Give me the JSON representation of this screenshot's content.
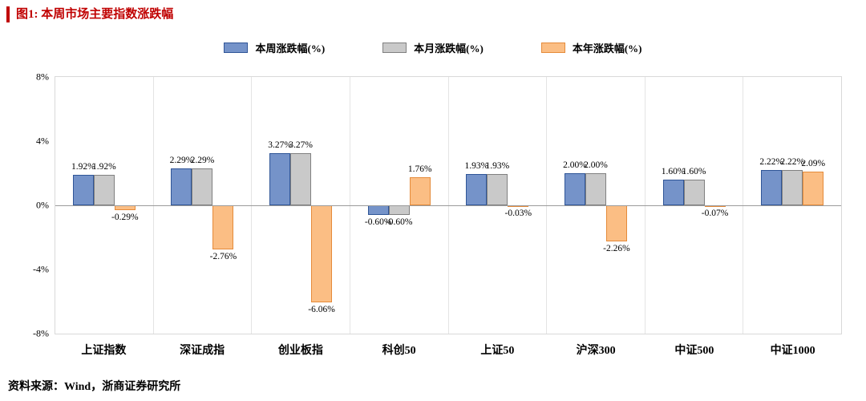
{
  "title": "图1:  本周市场主要指数涨跌幅",
  "source": "资料来源：Wind，浙商证券研究所",
  "colors": {
    "title_red": "#c00000",
    "plot_border": "#d9d9d9",
    "zero_line": "#9b9b9b"
  },
  "chart_data": {
    "type": "bar",
    "title": "本周市场主要指数涨跌幅",
    "categories": [
      "上证指数",
      "深证成指",
      "创业板指",
      "科创50",
      "上证50",
      "沪深300",
      "中证500",
      "中证1000"
    ],
    "series": [
      {
        "name": "本周涨跌幅(%)",
        "fill": "#7593c9",
        "border": "#2f5597",
        "values": [
          1.92,
          2.29,
          3.27,
          -0.6,
          1.93,
          2.0,
          1.6,
          2.22
        ]
      },
      {
        "name": "本月涨跌幅(%)",
        "fill": "#c9c9c9",
        "border": "#808080",
        "values": [
          1.92,
          2.29,
          3.27,
          -0.6,
          1.93,
          2.0,
          1.6,
          2.22
        ]
      },
      {
        "name": "本年涨跌幅(%)",
        "fill": "#fbbe84",
        "border": "#e58b3a",
        "values": [
          -0.29,
          -2.76,
          -6.06,
          1.76,
          -0.03,
          -2.26,
          -0.07,
          2.09
        ]
      }
    ],
    "ylim": [
      -8,
      8
    ],
    "yticks": [
      "8%",
      "4%",
      "0%",
      "-4%",
      "-8%"
    ],
    "grid": "vertical-separators",
    "legend_position": "top",
    "value_labels": "shown, 2 decimals with % sign"
  }
}
